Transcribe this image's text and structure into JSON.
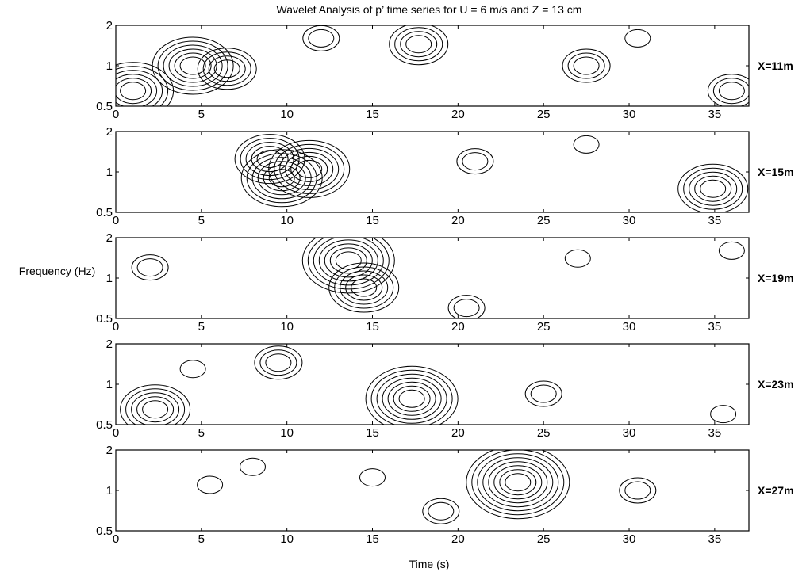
{
  "chart_data": {
    "type": "contour",
    "title": "Wavelet Analysis of p’ time series for U = 6 m/s and Z = 13 cm",
    "xlabel": "Time (s)",
    "ylabel": "Frequency (Hz)",
    "xlim": [
      0,
      37
    ],
    "ylim": [
      0.5,
      2
    ],
    "xticks": [
      0,
      5,
      10,
      15,
      20,
      25,
      30,
      35
    ],
    "yticks": [
      0.5,
      1,
      2
    ],
    "colors": {
      "lines": "#000000",
      "background": "#ffffff"
    },
    "panels": [
      {
        "label": "X=11m",
        "peaks": [
          {
            "t": 1.0,
            "f": 0.65,
            "levels": 6
          },
          {
            "t": 4.5,
            "f": 1.0,
            "levels": 6
          },
          {
            "t": 6.5,
            "f": 0.95,
            "levels": 4
          },
          {
            "t": 17.7,
            "f": 1.45,
            "levels": 4
          },
          {
            "t": 12.0,
            "f": 1.6,
            "levels": 2
          },
          {
            "t": 27.5,
            "f": 1.0,
            "levels": 3
          },
          {
            "t": 36.0,
            "f": 0.65,
            "levels": 3
          },
          {
            "t": 30.5,
            "f": 1.6,
            "levels": 1
          }
        ]
      },
      {
        "label": "X=15m",
        "peaks": [
          {
            "t": 9.0,
            "f": 1.25,
            "levels": 5
          },
          {
            "t": 9.7,
            "f": 0.9,
            "levels": 6
          },
          {
            "t": 11.3,
            "f": 1.05,
            "levels": 6
          },
          {
            "t": 21.0,
            "f": 1.2,
            "levels": 2
          },
          {
            "t": 34.9,
            "f": 0.75,
            "levels": 5
          },
          {
            "t": 27.5,
            "f": 1.6,
            "levels": 1
          }
        ]
      },
      {
        "label": "X=19m",
        "peaks": [
          {
            "t": 13.6,
            "f": 1.35,
            "levels": 7
          },
          {
            "t": 14.5,
            "f": 0.85,
            "levels": 5
          },
          {
            "t": 2.0,
            "f": 1.2,
            "levels": 2
          },
          {
            "t": 27.0,
            "f": 1.4,
            "levels": 1
          },
          {
            "t": 20.5,
            "f": 0.6,
            "levels": 2
          },
          {
            "t": 36.0,
            "f": 1.6,
            "levels": 1
          }
        ]
      },
      {
        "label": "X=23m",
        "peaks": [
          {
            "t": 2.3,
            "f": 0.65,
            "levels": 5
          },
          {
            "t": 9.5,
            "f": 1.45,
            "levels": 3
          },
          {
            "t": 17.3,
            "f": 0.78,
            "levels": 7
          },
          {
            "t": 25.0,
            "f": 0.85,
            "levels": 2
          },
          {
            "t": 4.5,
            "f": 1.3,
            "levels": 1
          },
          {
            "t": 35.5,
            "f": 0.6,
            "levels": 1
          }
        ]
      },
      {
        "label": "X=27m",
        "peaks": [
          {
            "t": 23.5,
            "f": 1.15,
            "levels": 8
          },
          {
            "t": 30.5,
            "f": 1.0,
            "levels": 2
          },
          {
            "t": 5.5,
            "f": 1.1,
            "levels": 1
          },
          {
            "t": 15.0,
            "f": 1.25,
            "levels": 1
          },
          {
            "t": 19.0,
            "f": 0.7,
            "levels": 2
          },
          {
            "t": 8.0,
            "f": 1.5,
            "levels": 1
          }
        ]
      }
    ]
  }
}
